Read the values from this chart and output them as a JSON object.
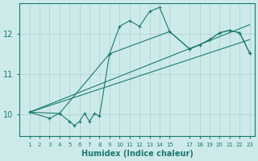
{
  "xlabel": "Humidex (Indice chaleur)",
  "ylabel": "",
  "bg_color": "#cdeaea",
  "line_color": "#1a7a6e",
  "grid_color": "#afd0d0",
  "xlim": [
    0.0,
    23.5
  ],
  "ylim": [
    9.45,
    12.75
  ],
  "yticks": [
    10,
    11,
    12
  ],
  "xticks": [
    1,
    2,
    3,
    4,
    5,
    6,
    7,
    8,
    9,
    10,
    11,
    12,
    13,
    14,
    15,
    17,
    18,
    19,
    20,
    21,
    22,
    23
  ],
  "line1_x": [
    1,
    3,
    4,
    5,
    5.5,
    6,
    6.5,
    7,
    7.5,
    8,
    9,
    10,
    11,
    12,
    13,
    14,
    15,
    17,
    18,
    19,
    20,
    21,
    22,
    23
  ],
  "line1_y": [
    10.05,
    9.9,
    10.02,
    9.82,
    9.72,
    9.82,
    10.02,
    9.82,
    10.02,
    9.95,
    11.5,
    12.18,
    12.32,
    12.18,
    12.55,
    12.65,
    12.05,
    11.62,
    11.72,
    11.85,
    12.02,
    12.08,
    12.02,
    11.52
  ],
  "line2_x": [
    1,
    4,
    9,
    15,
    17,
    18,
    19,
    20,
    21,
    22,
    23
  ],
  "line2_y": [
    10.05,
    10.02,
    11.5,
    12.05,
    11.62,
    11.72,
    11.85,
    12.02,
    12.08,
    12.02,
    11.52
  ],
  "line3_x": [
    1,
    23
  ],
  "line3_y": [
    10.05,
    11.85
  ],
  "line4_x": [
    1,
    23
  ],
  "line4_y": [
    10.05,
    12.22
  ]
}
